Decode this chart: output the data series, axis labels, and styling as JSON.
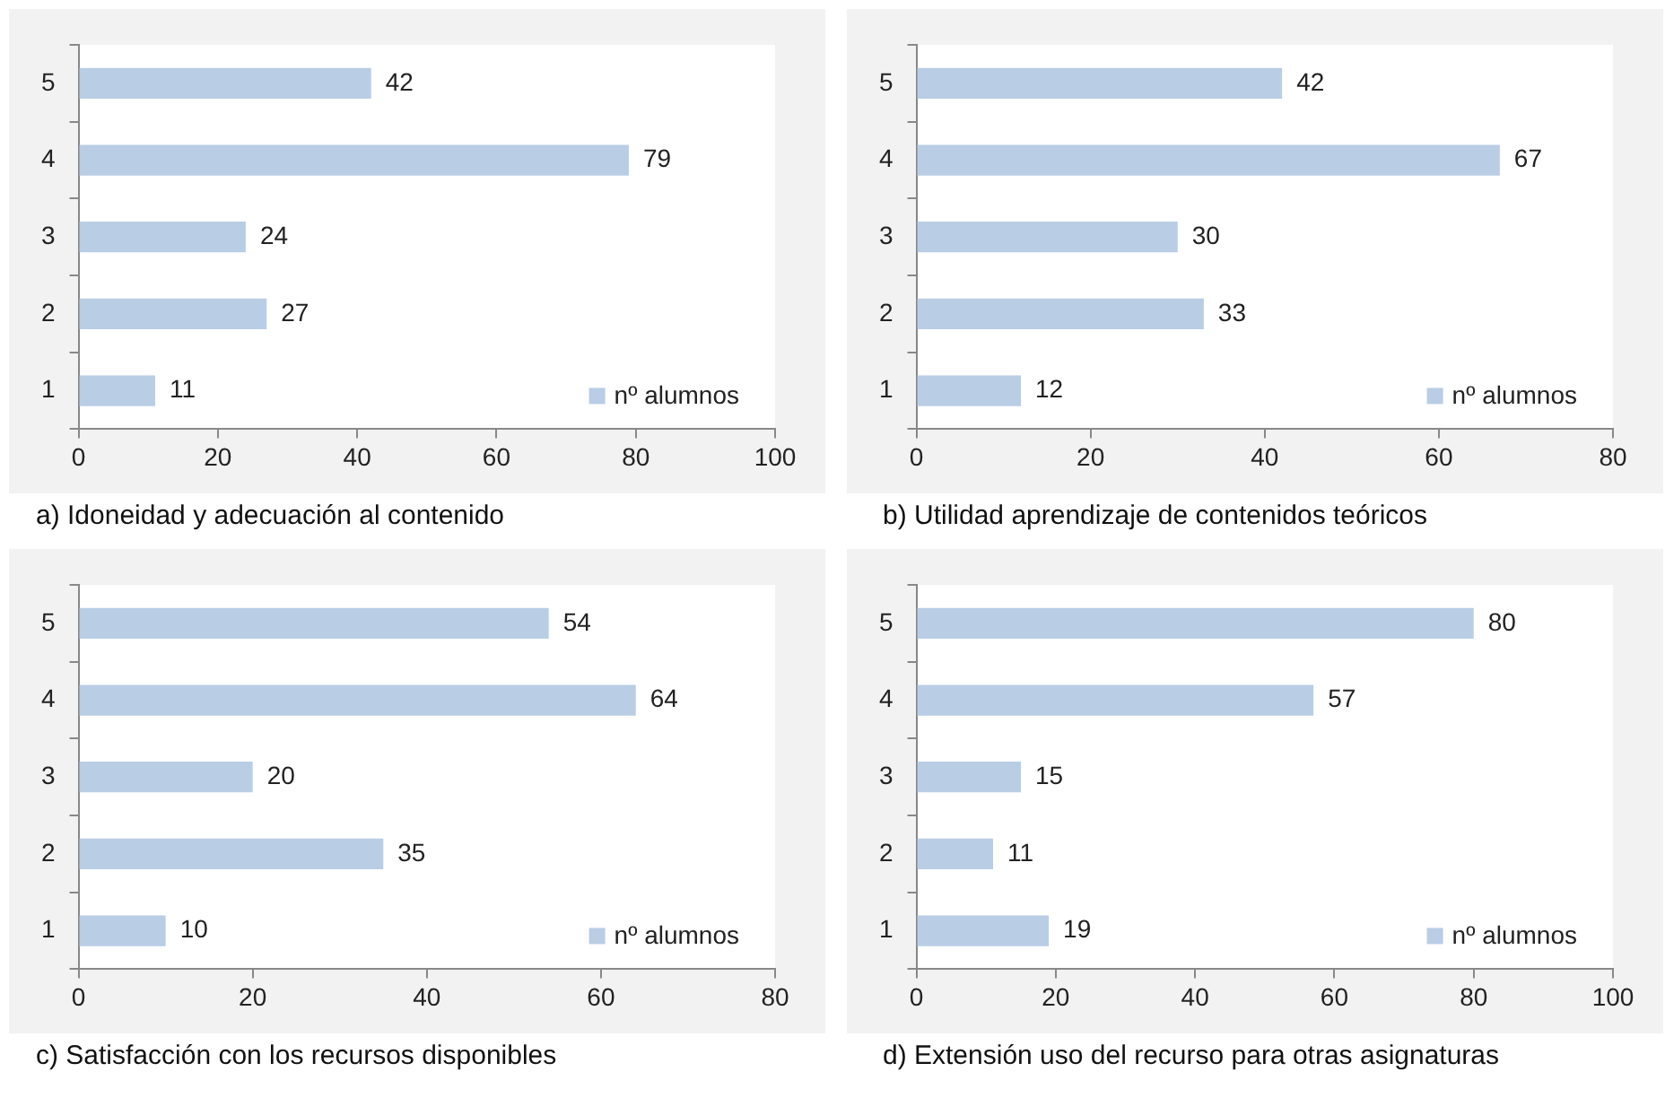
{
  "chart_data": [
    {
      "type": "bar",
      "orientation": "horizontal",
      "title": "a) Idoneidad y adecuación al contenido",
      "categories": [
        "5",
        "4",
        "3",
        "2",
        "1"
      ],
      "series": [
        {
          "name": "nº alumnos",
          "color": "#b9cde5",
          "values": [
            42,
            79,
            24,
            27,
            11
          ]
        }
      ],
      "xlim": [
        0,
        100
      ],
      "xticks": [
        0,
        20,
        40,
        60,
        80,
        100
      ],
      "data_labels": true,
      "legend": "bottom right",
      "grid": false
    },
    {
      "type": "bar",
      "orientation": "horizontal",
      "title": "b) Utilidad aprendizaje de contenidos teóricos",
      "categories": [
        "5",
        "4",
        "3",
        "2",
        "1"
      ],
      "series": [
        {
          "name": "nº alumnos",
          "color": "#b9cde5",
          "values": [
            42,
            67,
            30,
            33,
            12
          ]
        }
      ],
      "xlim": [
        0,
        80
      ],
      "xticks": [
        0,
        20,
        40,
        60,
        80
      ],
      "data_labels": true,
      "legend": "bottom right",
      "grid": false
    },
    {
      "type": "bar",
      "orientation": "horizontal",
      "title": "c) Satisfacción con los recursos disponibles",
      "categories": [
        "5",
        "4",
        "3",
        "2",
        "1"
      ],
      "series": [
        {
          "name": "nº alumnos",
          "color": "#b9cde5",
          "values": [
            54,
            64,
            20,
            35,
            10
          ]
        }
      ],
      "xlim": [
        0,
        80
      ],
      "xticks": [
        0,
        20,
        40,
        60,
        80
      ],
      "data_labels": true,
      "legend": "bottom right",
      "grid": false
    },
    {
      "type": "bar",
      "orientation": "horizontal",
      "title": "d) Extensión uso del recurso para otras asignaturas",
      "categories": [
        "5",
        "4",
        "3",
        "2",
        "1"
      ],
      "series": [
        {
          "name": "nº alumnos",
          "color": "#b9cde5",
          "values": [
            80,
            57,
            15,
            11,
            19
          ]
        }
      ],
      "xlim": [
        0,
        100
      ],
      "xticks": [
        0,
        20,
        40,
        60,
        80,
        100
      ],
      "data_labels": true,
      "legend": "bottom right",
      "grid": false
    }
  ]
}
